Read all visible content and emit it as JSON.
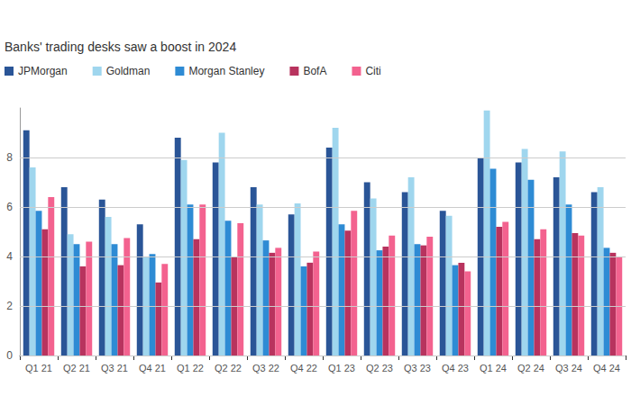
{
  "chart_data": {
    "type": "bar",
    "title": "Banks' trading desks saw a boost in 2024",
    "categories": [
      "Q1 21",
      "Q2 21",
      "Q3 21",
      "Q4 21",
      "Q1 22",
      "Q2 22",
      "Q3 22",
      "Q4 22",
      "Q1 23",
      "Q2 23",
      "Q3 23",
      "Q4 23",
      "Q1 24",
      "Q2 24",
      "Q3 24",
      "Q4 24"
    ],
    "series": [
      {
        "name": "JPMorgan",
        "color": "#2a5597",
        "values": [
          9.1,
          6.8,
          6.3,
          5.3,
          8.8,
          7.8,
          6.8,
          5.7,
          8.4,
          7.0,
          6.6,
          5.85,
          8.0,
          7.8,
          7.2,
          6.6
        ]
      },
      {
        "name": "Goldman",
        "color": "#9fd6ee",
        "values": [
          7.6,
          4.9,
          5.6,
          4.0,
          7.9,
          9.0,
          6.1,
          6.15,
          9.2,
          6.35,
          7.2,
          5.65,
          9.9,
          8.35,
          8.25,
          6.8
        ]
      },
      {
        "name": "Morgan Stanley",
        "color": "#2e8bd4",
        "values": [
          5.85,
          4.5,
          4.5,
          4.1,
          6.1,
          5.45,
          4.65,
          3.6,
          5.3,
          4.25,
          4.5,
          3.65,
          7.55,
          7.1,
          6.1,
          4.35
        ]
      },
      {
        "name": "BofA",
        "color": "#b8335e",
        "values": [
          5.1,
          3.6,
          3.65,
          2.95,
          4.7,
          4.0,
          4.15,
          3.75,
          5.05,
          4.4,
          4.45,
          3.75,
          5.2,
          4.7,
          4.95,
          4.15
        ]
      },
      {
        "name": "Citi",
        "color": "#f3628f",
        "values": [
          6.4,
          4.6,
          4.75,
          3.7,
          6.1,
          5.35,
          4.35,
          4.2,
          5.85,
          4.85,
          4.8,
          3.4,
          5.4,
          5.1,
          4.85,
          4.0
        ]
      }
    ],
    "ylim": [
      0,
      10
    ],
    "yticks": [
      0,
      2,
      4,
      6,
      8
    ],
    "grid": true,
    "legend": "top-left"
  }
}
